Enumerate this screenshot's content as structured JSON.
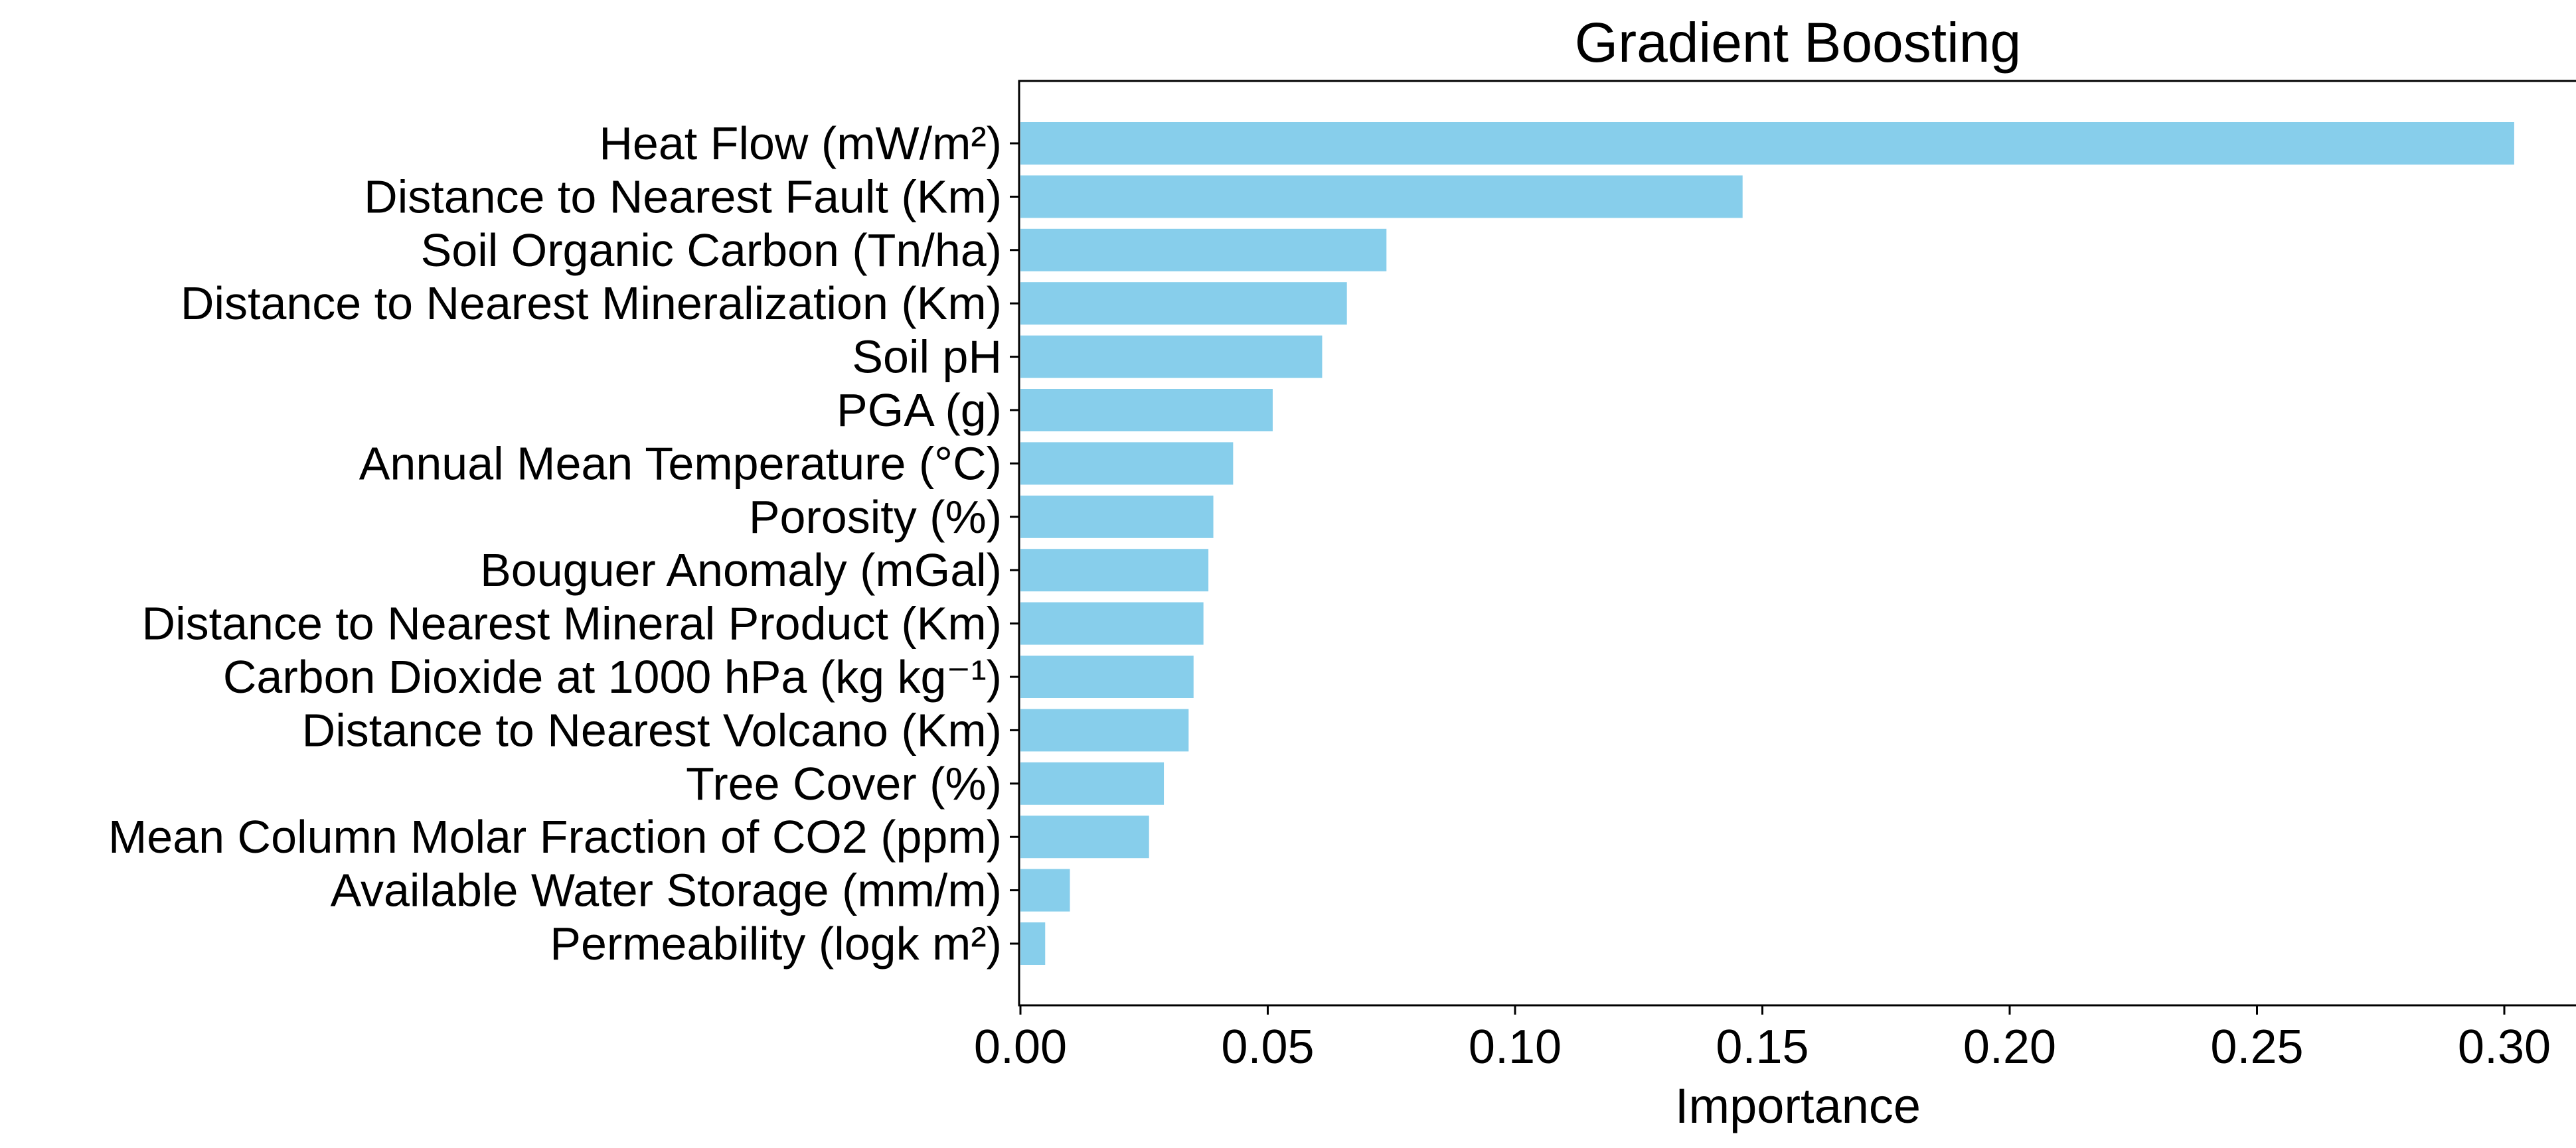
{
  "chart_data": {
    "type": "bar",
    "orientation": "horizontal",
    "title": "Gradient Boosting",
    "xlabel": "Importance",
    "ylabel": "",
    "xlim": [
      0.0,
      0.317
    ],
    "xticks": [
      "0.00",
      "0.05",
      "0.10",
      "0.15",
      "0.20",
      "0.25",
      "0.30"
    ],
    "xtick_values": [
      0.0,
      0.05,
      0.1,
      0.15,
      0.2,
      0.25,
      0.3
    ],
    "grid": false,
    "bar_color": "#87CEEB",
    "categories": [
      "Heat Flow (mW/m²)",
      "Distance to Nearest Fault (Km)",
      "Soil Organic Carbon (Tn/ha)",
      "Distance to Nearest Mineralization (Km)",
      "Soil pH",
      "PGA (g)",
      "Annual Mean Temperature (°C)",
      "Porosity (%)",
      "Bouguer Anomaly (mGal)",
      "Distance to Nearest Mineral Product (Km)",
      "Carbon Dioxide at 1000 hPa (kg kg⁻¹)",
      "Distance to Nearest Volcano (Km)",
      "Tree Cover (%)",
      "Mean Column Molar Fraction of CO2 (ppm)",
      "Available Water Storage (mm/m)",
      "Permeability (logk m²)"
    ],
    "values": [
      0.302,
      0.146,
      0.074,
      0.066,
      0.061,
      0.051,
      0.043,
      0.039,
      0.038,
      0.037,
      0.035,
      0.034,
      0.029,
      0.026,
      0.01,
      0.005
    ]
  }
}
